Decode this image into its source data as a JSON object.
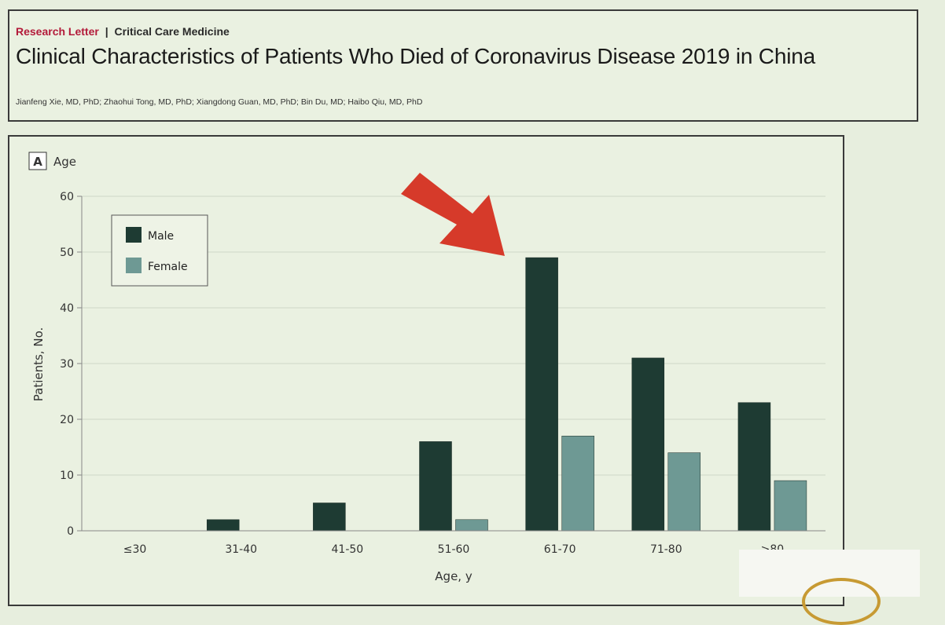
{
  "header": {
    "kicker_tag": "Research Letter",
    "kicker_sep": "|",
    "kicker_section": "Critical Care Medicine",
    "title": "Clinical Characteristics of Patients Who Died of Coronavirus Disease 2019 in China",
    "authors": "Jianfeng Xie, MD, PhD; Zhaohui Tong, MD, PhD; Xiangdong Guan, MD, PhD; Bin Du, MD; Haibo Qiu, MD, PhD"
  },
  "chart_data": {
    "type": "bar",
    "panel": "A",
    "title": "Age",
    "xlabel": "Age, y",
    "ylabel": "Patients, No.",
    "ylim": [
      0,
      60
    ],
    "yticks": [
      0,
      10,
      20,
      30,
      40,
      50,
      60
    ],
    "grid": true,
    "legend_position": "top-left",
    "categories": [
      "≤30",
      "31-40",
      "41-50",
      "51-60",
      "61-70",
      "71-80",
      ">80"
    ],
    "series": [
      {
        "name": "Male",
        "color": "#1e3b33",
        "values": [
          0,
          2,
          5,
          16,
          49,
          31,
          23
        ]
      },
      {
        "name": "Female",
        "color": "#6e9994",
        "values": [
          0,
          0,
          0,
          2,
          17,
          14,
          9
        ]
      }
    ],
    "annotation": {
      "type": "arrow",
      "color": "#d63a2a",
      "target_category": "61-70"
    }
  }
}
